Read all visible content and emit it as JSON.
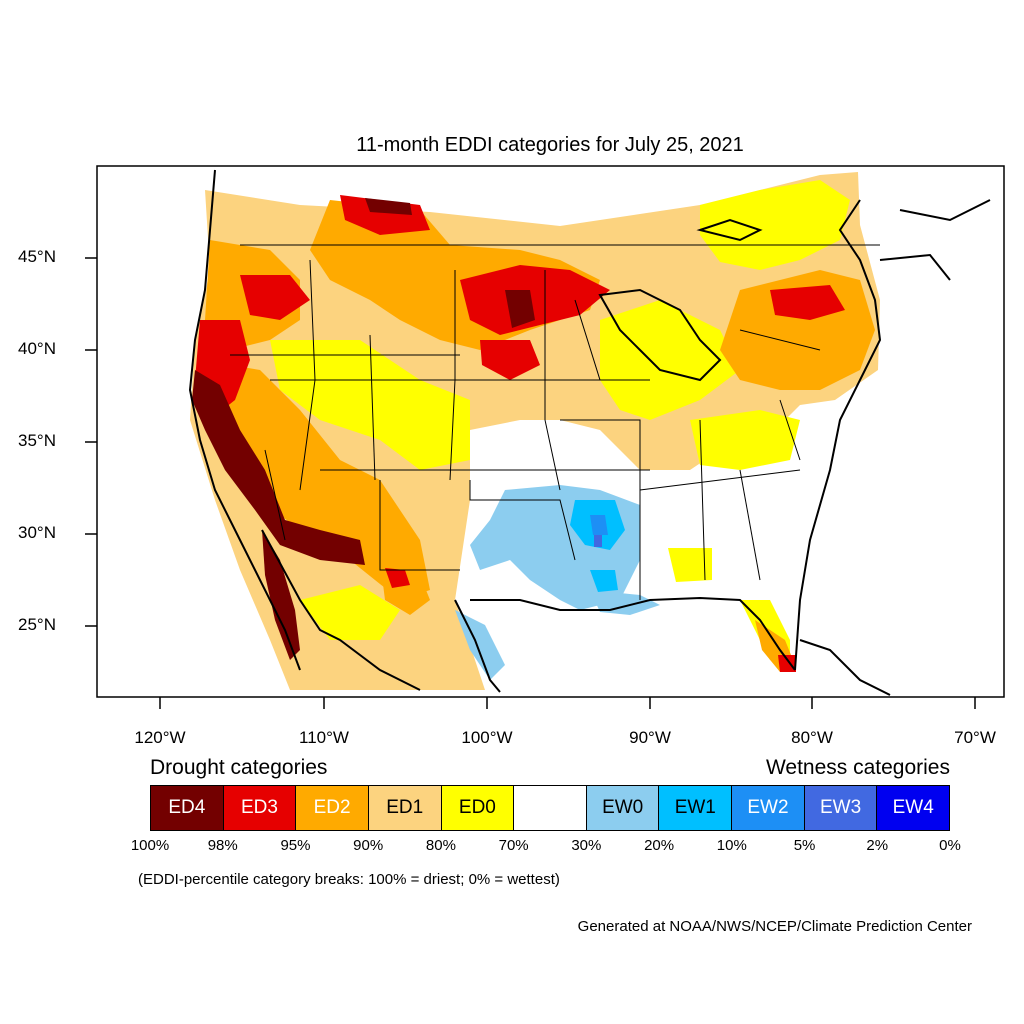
{
  "title": "11-month EDDI categories for July 25, 2021",
  "lat_labels": [
    "45°N",
    "40°N",
    "35°N",
    "30°N",
    "25°N"
  ],
  "lon_labels": [
    "120°W",
    "110°W",
    "100°W",
    "90°W",
    "80°W",
    "70°W"
  ],
  "legend": {
    "drought_heading": "Drought categories",
    "wetness_heading": "Wetness categories",
    "categories": [
      {
        "label": "ED4",
        "color": "#730000",
        "text_color": "#ffffff"
      },
      {
        "label": "ED3",
        "color": "#e60000",
        "text_color": "#ffffff"
      },
      {
        "label": "ED2",
        "color": "#ffaa00",
        "text_color": "#ffffff"
      },
      {
        "label": "ED1",
        "color": "#fcd37f",
        "text_color": "#000000"
      },
      {
        "label": "ED0",
        "color": "#ffff00",
        "text_color": "#000000"
      },
      {
        "label": "",
        "color": "#ffffff",
        "text_color": "#000000"
      },
      {
        "label": "EW0",
        "color": "#8ccdef",
        "text_color": "#000000"
      },
      {
        "label": "EW1",
        "color": "#00bfff",
        "text_color": "#000000"
      },
      {
        "label": "EW2",
        "color": "#1d8ff5",
        "text_color": "#ffffff"
      },
      {
        "label": "EW3",
        "color": "#4169e1",
        "text_color": "#ffffff"
      },
      {
        "label": "EW4",
        "color": "#0000f0",
        "text_color": "#ffffff"
      }
    ],
    "breaks": [
      "100%",
      "98%",
      "95%",
      "90%",
      "80%",
      "70%",
      "30%",
      "20%",
      "10%",
      "5%",
      "2%",
      "0%"
    ]
  },
  "note": "(EDDI-percentile category breaks: 100% = driest; 0% = wettest)",
  "credit": "Generated at NOAA/NWS/NCEP/Climate Prediction Center"
}
